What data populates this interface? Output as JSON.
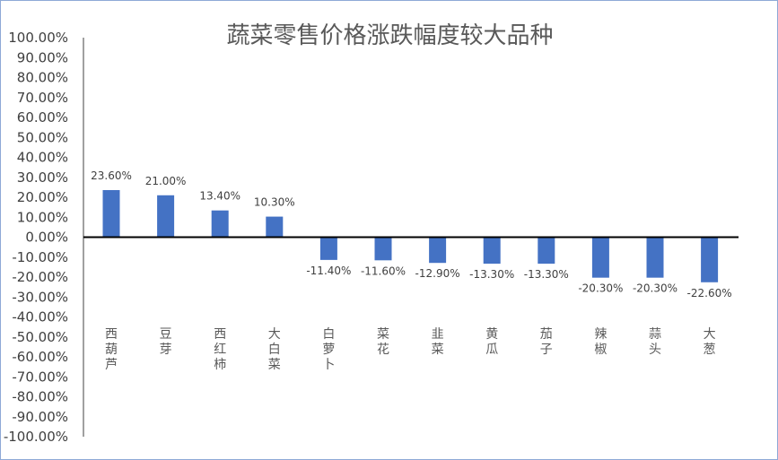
{
  "chart_data": {
    "type": "bar",
    "title": "蔬菜零售价格涨跌幅度较大品种",
    "xlabel": "",
    "ylabel": "",
    "ylim": [
      -100,
      100
    ],
    "y_tick_step": 10,
    "y_tick_format": "percent-2dp",
    "grid": false,
    "legend": "none",
    "bar_color": "#4472c4",
    "categories": [
      "西葫芦",
      "豆芽",
      "西红柿",
      "大白菜",
      "白萝卜",
      "菜花",
      "韭菜",
      "黄瓜",
      "茄子",
      "辣椒",
      "蒜头",
      "大葱"
    ],
    "values": [
      23.6,
      21.0,
      13.4,
      10.3,
      -11.4,
      -11.6,
      -12.9,
      -13.3,
      -13.3,
      -20.3,
      -20.3,
      -22.6
    ],
    "data_labels": [
      "23.60%",
      "21.00%",
      "13.40%",
      "10.30%",
      "-11.40%",
      "-11.60%",
      "-12.90%",
      "-13.30%",
      "-13.30%",
      "-20.30%",
      "-20.30%",
      "-22.60%"
    ],
    "y_tick_labels": [
      "100.00%",
      "90.00%",
      "80.00%",
      "70.00%",
      "60.00%",
      "50.00%",
      "40.00%",
      "30.00%",
      "20.00%",
      "10.00%",
      "0.00%",
      "-10.00%",
      "-20.00%",
      "-30.00%",
      "-40.00%",
      "-50.00%",
      "-60.00%",
      "-70.00%",
      "-80.00%",
      "-90.00%",
      "-100.00%"
    ]
  }
}
